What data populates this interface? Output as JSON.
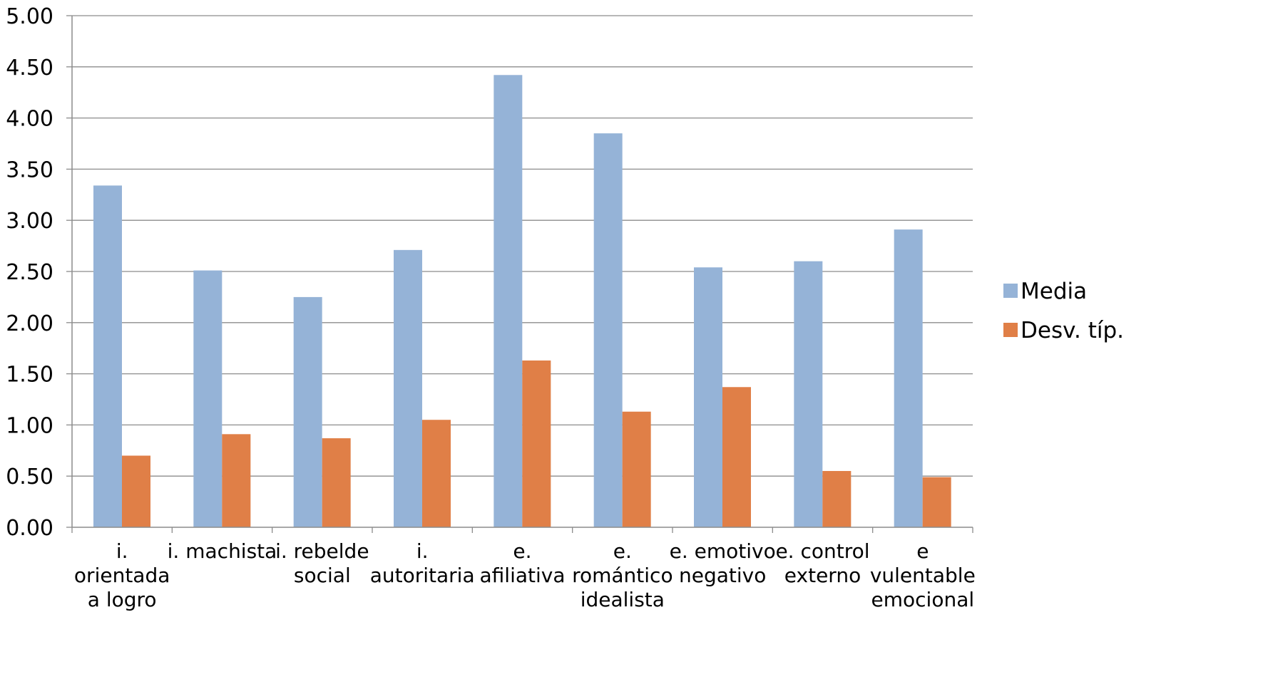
{
  "chart_data": {
    "type": "bar",
    "categories": [
      "i. orientada a logro",
      "i. machista",
      "i. rebelde social",
      "i. autoritaria",
      "e. afiliativa",
      "e. romántico idealista",
      "e. emotivo negativo",
      "e. control externo",
      "e vulentable emocional"
    ],
    "category_lines": [
      [
        "i.",
        "orientada",
        "a logro"
      ],
      [
        "i. machista"
      ],
      [
        "i. rebelde",
        "social"
      ],
      [
        "i.",
        "autoritaria"
      ],
      [
        "e.",
        "afiliativa"
      ],
      [
        "e.",
        "romántico",
        "idealista"
      ],
      [
        "e. emotivo",
        "negativo"
      ],
      [
        "e. control",
        "externo"
      ],
      [
        "e",
        "vulentable",
        "emocional"
      ]
    ],
    "series": [
      {
        "name": "Media",
        "color": "#95b3d7",
        "values": [
          3.34,
          2.51,
          2.25,
          2.71,
          4.42,
          3.85,
          2.54,
          2.6,
          2.91
        ]
      },
      {
        "name": "Desv. típ.",
        "color": "#e07f47",
        "values": [
          0.7,
          0.91,
          0.87,
          1.05,
          1.63,
          1.13,
          1.37,
          0.55,
          0.49
        ]
      }
    ],
    "yticks": [
      "0.00",
      "0.50",
      "1.00",
      "1.50",
      "2.00",
      "2.50",
      "3.00",
      "3.50",
      "4.00",
      "4.50",
      "5.00"
    ],
    "ylim": [
      0,
      5
    ],
    "title": "",
    "xlabel": "",
    "ylabel": "",
    "grid": true,
    "legend": "right"
  }
}
